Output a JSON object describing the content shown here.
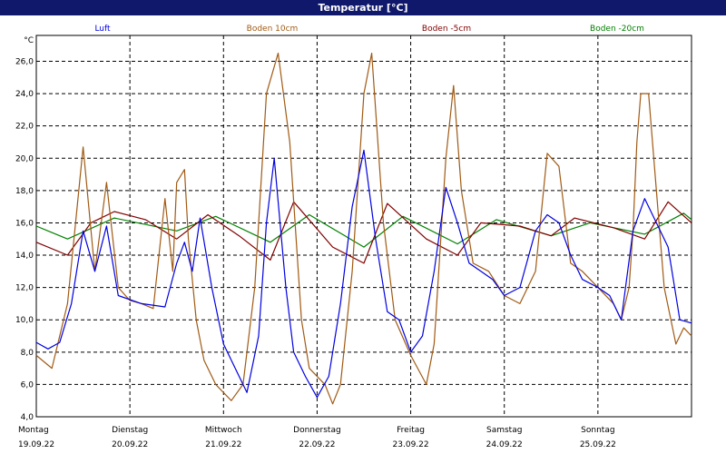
{
  "chart_data": {
    "type": "line",
    "title": "Temperatur [°C]",
    "y_unit": "°C",
    "ylim": [
      4.0,
      27.6
    ],
    "y_ticks": [
      "4,0",
      "6,0",
      "8,0",
      "10,0",
      "12,0",
      "14,0",
      "16,0",
      "18,0",
      "20,0",
      "22,0",
      "24,0",
      "26,0"
    ],
    "x_range": [
      "2022-09-19 00:00",
      "2022-09-26 00:00"
    ],
    "x_ticks": [
      {
        "day": "Montag",
        "date": "19.09.22"
      },
      {
        "day": "Dienstag",
        "date": "20.09.22"
      },
      {
        "day": "Mittwoch",
        "date": "21.09.22"
      },
      {
        "day": "Donnerstag",
        "date": "22.09.22"
      },
      {
        "day": "Freitag",
        "date": "23.09.22"
      },
      {
        "day": "Samstag",
        "date": "24.09.22"
      },
      {
        "day": "Sonntag",
        "date": "25.09.22"
      }
    ],
    "grid": true,
    "legend_position": "top",
    "series": [
      {
        "name": "Luft",
        "color": "#0000e0",
        "x": [
          "2022-09-19 00:00",
          "2022-09-19 03:00",
          "2022-09-19 06:00",
          "2022-09-19 09:00",
          "2022-09-19 12:00",
          "2022-09-19 15:00",
          "2022-09-19 18:00",
          "2022-09-19 21:00",
          "2022-09-20 03:00",
          "2022-09-20 09:00",
          "2022-09-20 12:00",
          "2022-09-20 14:00",
          "2022-09-20 16:00",
          "2022-09-20 18:00",
          "2022-09-20 21:00",
          "2022-09-21 00:00",
          "2022-09-21 03:00",
          "2022-09-21 06:00",
          "2022-09-21 09:00",
          "2022-09-21 11:00",
          "2022-09-21 13:00",
          "2022-09-21 16:00",
          "2022-09-21 18:00",
          "2022-09-21 21:00",
          "2022-09-22 00:00",
          "2022-09-22 03:00",
          "2022-09-22 06:00",
          "2022-09-22 09:00",
          "2022-09-22 12:00",
          "2022-09-22 15:00",
          "2022-09-22 18:00",
          "2022-09-22 21:00",
          "2022-09-23 00:00",
          "2022-09-23 03:00",
          "2022-09-23 06:00",
          "2022-09-23 09:00",
          "2022-09-23 12:00",
          "2022-09-23 15:00",
          "2022-09-23 18:00",
          "2022-09-23 21:00",
          "2022-09-24 00:00",
          "2022-09-24 04:00",
          "2022-09-24 08:00",
          "2022-09-24 11:00",
          "2022-09-24 14:00",
          "2022-09-24 17:00",
          "2022-09-24 20:00",
          "2022-09-25 00:00",
          "2022-09-25 03:00",
          "2022-09-25 06:00",
          "2022-09-25 09:00",
          "2022-09-25 12:00",
          "2022-09-25 15:00",
          "2022-09-25 18:00",
          "2022-09-25 21:00",
          "2022-09-26 00:00"
        ],
        "values": [
          8.6,
          8.2,
          8.6,
          11.0,
          15.5,
          13.0,
          15.8,
          11.5,
          11.0,
          10.8,
          13.5,
          14.8,
          13.0,
          16.3,
          12.0,
          8.5,
          7.0,
          5.5,
          9.0,
          16.0,
          20.0,
          12.0,
          8.0,
          6.5,
          5.2,
          6.5,
          11.0,
          17.0,
          20.5,
          15.0,
          10.5,
          10.0,
          8.0,
          9.0,
          13.0,
          18.2,
          16.0,
          13.5,
          13.0,
          12.5,
          11.5,
          12.0,
          15.5,
          16.5,
          16.0,
          14.0,
          12.5,
          12.0,
          11.5,
          10.0,
          15.5,
          17.5,
          16.0,
          14.5,
          10.0,
          9.8
        ]
      },
      {
        "name": "Boden 10cm",
        "color": "#a05a14",
        "x": [
          "2022-09-19 00:00",
          "2022-09-19 04:00",
          "2022-09-19 08:00",
          "2022-09-19 12:00",
          "2022-09-19 15:00",
          "2022-09-19 18:00",
          "2022-09-19 21:00",
          "2022-09-20 00:00",
          "2022-09-20 03:00",
          "2022-09-20 06:00",
          "2022-09-20 09:00",
          "2022-09-20 11:00",
          "2022-09-20 12:00",
          "2022-09-20 14:00",
          "2022-09-20 15:00",
          "2022-09-20 17:00",
          "2022-09-20 19:00",
          "2022-09-20 22:00",
          "2022-09-21 02:00",
          "2022-09-21 05:00",
          "2022-09-21 08:00",
          "2022-09-21 11:00",
          "2022-09-21 14:00",
          "2022-09-21 17:00",
          "2022-09-21 20:00",
          "2022-09-21 22:00",
          "2022-09-22 02:00",
          "2022-09-22 04:00",
          "2022-09-22 06:00",
          "2022-09-22 09:00",
          "2022-09-22 12:00",
          "2022-09-22 14:00",
          "2022-09-22 17:00",
          "2022-09-22 20:00",
          "2022-09-23 00:00",
          "2022-09-23 04:00",
          "2022-09-23 06:00",
          "2022-09-23 09:00",
          "2022-09-23 11:00",
          "2022-09-23 13:00",
          "2022-09-23 16:00",
          "2022-09-23 20:00",
          "2022-09-24 00:00",
          "2022-09-24 04:00",
          "2022-09-24 08:00",
          "2022-09-24 11:00",
          "2022-09-24 14:00",
          "2022-09-24 17:00",
          "2022-09-24 20:00",
          "2022-09-25 00:00",
          "2022-09-25 04:00",
          "2022-09-25 06:00",
          "2022-09-25 08:00",
          "2022-09-25 09:00",
          "2022-09-25 10:00",
          "2022-09-25 11:00",
          "2022-09-25 13:00",
          "2022-09-25 15:00",
          "2022-09-25 17:00",
          "2022-09-25 20:00",
          "2022-09-25 22:00",
          "2022-09-26 00:00"
        ],
        "values": [
          7.8,
          7.0,
          11.0,
          20.7,
          13.0,
          18.5,
          12.0,
          11.2,
          11.0,
          10.7,
          17.5,
          13.0,
          18.5,
          19.3,
          15.0,
          10.0,
          7.5,
          6.0,
          5.0,
          6.0,
          12.0,
          24.0,
          26.5,
          21.0,
          10.0,
          7.0,
          6.0,
          4.8,
          6.0,
          13.0,
          24.0,
          26.5,
          16.0,
          10.0,
          7.8,
          6.0,
          8.5,
          20.0,
          24.5,
          18.0,
          13.5,
          13.0,
          11.5,
          11.0,
          13.0,
          20.3,
          19.5,
          13.5,
          13.0,
          12.0,
          11.0,
          10.0,
          12.0,
          15.5,
          21.0,
          24.0,
          24.0,
          18.0,
          12.0,
          8.5,
          9.5,
          9.0
        ]
      },
      {
        "name": "Boden -5cm",
        "color": "#800000",
        "x": [
          "2022-09-19 00:00",
          "2022-09-19 08:00",
          "2022-09-19 14:00",
          "2022-09-19 20:00",
          "2022-09-20 04:00",
          "2022-09-20 12:00",
          "2022-09-20 20:00",
          "2022-09-21 04:00",
          "2022-09-21 12:00",
          "2022-09-21 18:00",
          "2022-09-22 04:00",
          "2022-09-22 12:00",
          "2022-09-22 18:00",
          "2022-09-23 04:00",
          "2022-09-23 12:00",
          "2022-09-23 18:00",
          "2022-09-24 04:00",
          "2022-09-24 12:00",
          "2022-09-24 18:00",
          "2022-09-25 04:00",
          "2022-09-25 12:00",
          "2022-09-25 18:00",
          "2022-09-26 00:00"
        ],
        "values": [
          14.8,
          14.0,
          16.0,
          16.7,
          16.2,
          15.0,
          16.5,
          15.2,
          13.7,
          17.3,
          14.5,
          13.5,
          17.2,
          15.0,
          14.0,
          16.0,
          15.8,
          15.2,
          16.3,
          15.7,
          15.0,
          17.3,
          16.0
        ]
      },
      {
        "name": "Boden -20cm",
        "color": "#008000",
        "x": [
          "2022-09-19 00:00",
          "2022-09-19 08:00",
          "2022-09-19 20:00",
          "2022-09-20 12:00",
          "2022-09-20 22:00",
          "2022-09-21 12:00",
          "2022-09-21 22:00",
          "2022-09-22 12:00",
          "2022-09-22 22:00",
          "2022-09-23 12:00",
          "2022-09-23 22:00",
          "2022-09-24 12:00",
          "2022-09-24 22:00",
          "2022-09-25 12:00",
          "2022-09-25 22:00",
          "2022-09-26 00:00"
        ],
        "values": [
          15.8,
          15.0,
          16.3,
          15.5,
          16.4,
          14.8,
          16.5,
          14.5,
          16.4,
          14.7,
          16.2,
          15.2,
          16.0,
          15.3,
          16.6,
          16.2
        ]
      }
    ]
  }
}
